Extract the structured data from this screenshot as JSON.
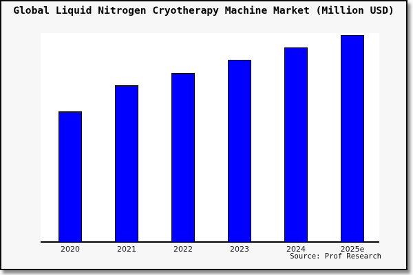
{
  "window": {
    "canvas_bg": "#fafafa",
    "frame_bg": "#f7f7f7",
    "frame_border_color": "#0a0a0a",
    "plot_bg": "#ffffff"
  },
  "chart_data": {
    "type": "bar",
    "title": "Global Liquid Nitrogen Cryotherapy Machine Market (Million USD)",
    "categories": [
      "2020",
      "2021",
      "2022",
      "2023",
      "2024",
      "2025e"
    ],
    "values": [
      63,
      75.5,
      81.7,
      88,
      94,
      100
    ],
    "values_note": "No y-axis or data labels are shown; values estimated from bar pixel heights as percent of the tallest (2025e) bar",
    "xlabel": "",
    "ylabel": "",
    "ylim": [
      0,
      101
    ],
    "grid": false,
    "legend": null,
    "axis_line_color": "#000000",
    "bar_fill": "#0000fe",
    "bar_stroke": "#000000",
    "tick_label_color": "#1a1a1a",
    "source": "Source: Prof Research"
  }
}
